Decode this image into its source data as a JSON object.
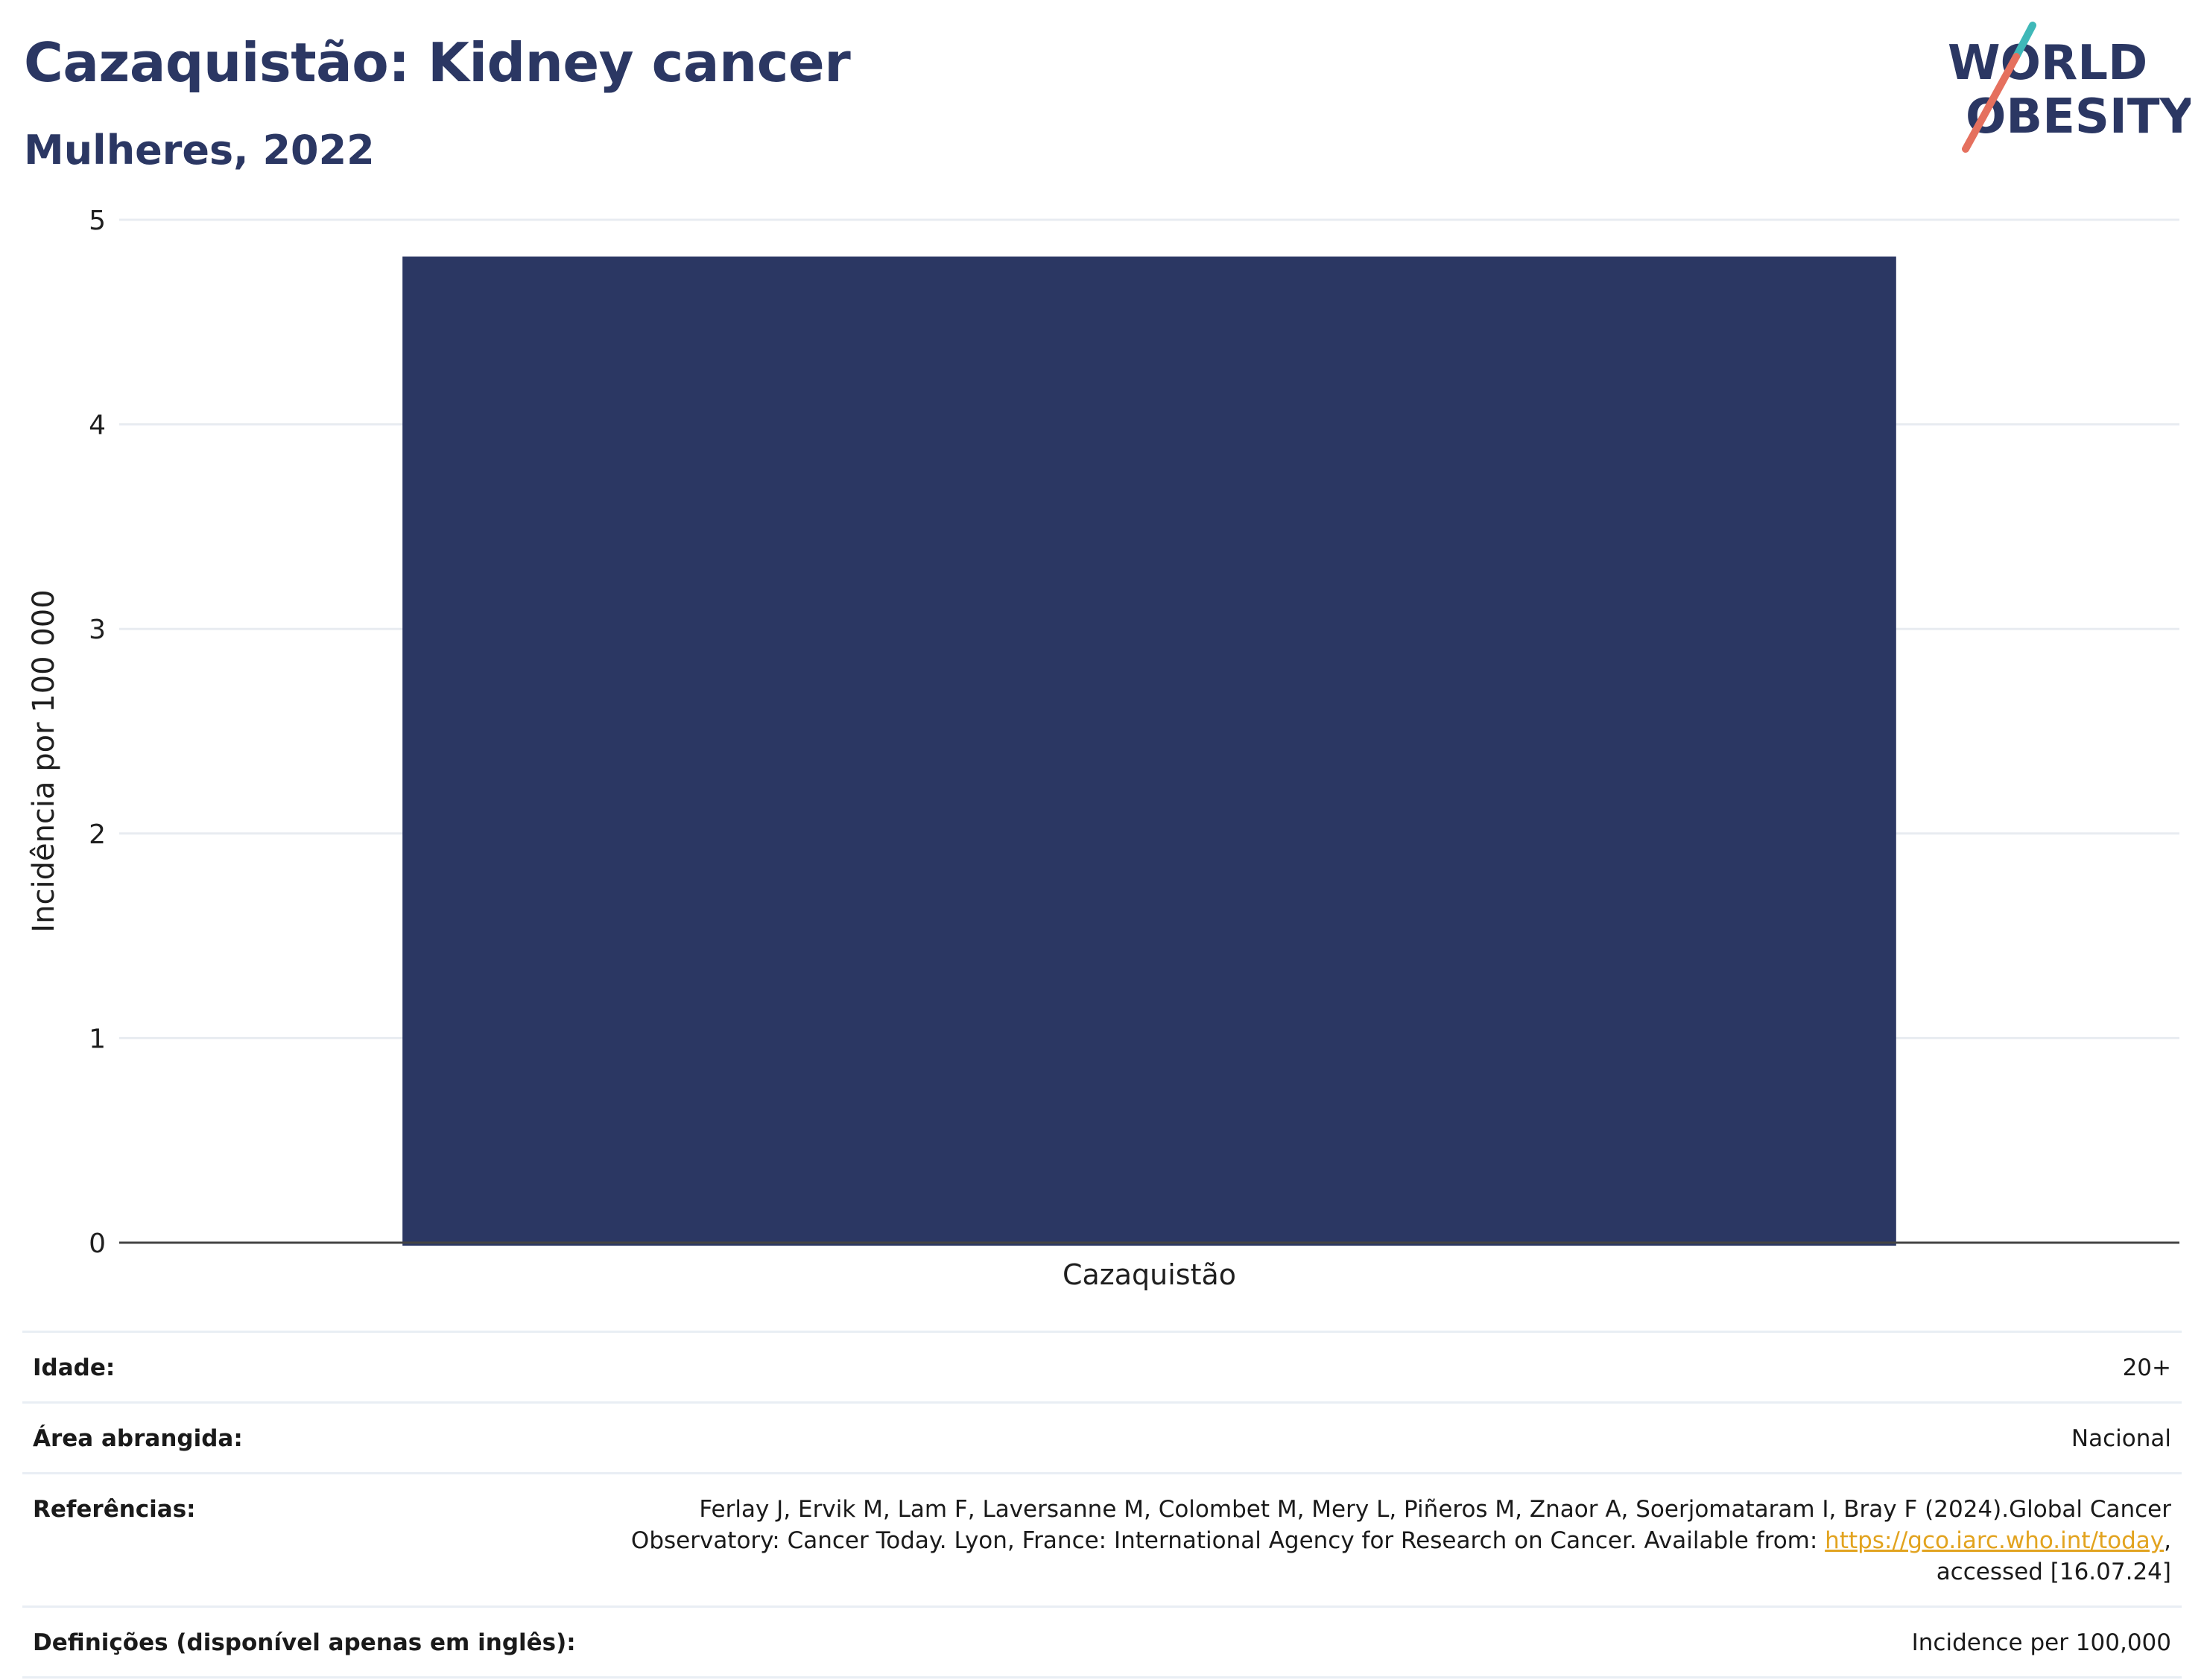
{
  "header": {
    "title": "Cazaquistão: Kidney cancer",
    "subtitle": "Mulheres, 2022",
    "logo": {
      "line1": "WORLD",
      "line2": "OBESITY",
      "accent_teal": "#3fb8b8",
      "accent_coral": "#e5705e",
      "text_color": "#2b3763"
    }
  },
  "chart_data": {
    "type": "bar",
    "categories": [
      "Cazaquistão"
    ],
    "values": [
      4.82
    ],
    "ylabel": "Incidência por 100 000",
    "xlabel": "",
    "ylim": [
      0,
      5
    ],
    "yticks": [
      0,
      1,
      2,
      3,
      4,
      5
    ],
    "grid": true,
    "bar_color": "#2b3763"
  },
  "info": {
    "rows": [
      {
        "key": "Idade:",
        "value": "20+"
      },
      {
        "key": "Área abrangida:",
        "value": "Nacional"
      },
      {
        "key": "Referências:",
        "value_line1": "Ferlay J, Ervik M, Lam F, Laversanne M, Colombet M, Mery L, Piñeros M, Znaor A, Soerjomataram I, Bray F (2024).Global Cancer",
        "value_line2": "Observatory: Cancer Today. Lyon, France: International Agency for Research on Cancer. Available from: ",
        "link": "https://gco.iarc.who.int/today",
        "value_line2_end": ",",
        "value_line3": "accessed [16.07.24]"
      },
      {
        "key": "Definições (disponível apenas em inglês):",
        "value": "Incidence per 100,000"
      }
    ]
  }
}
